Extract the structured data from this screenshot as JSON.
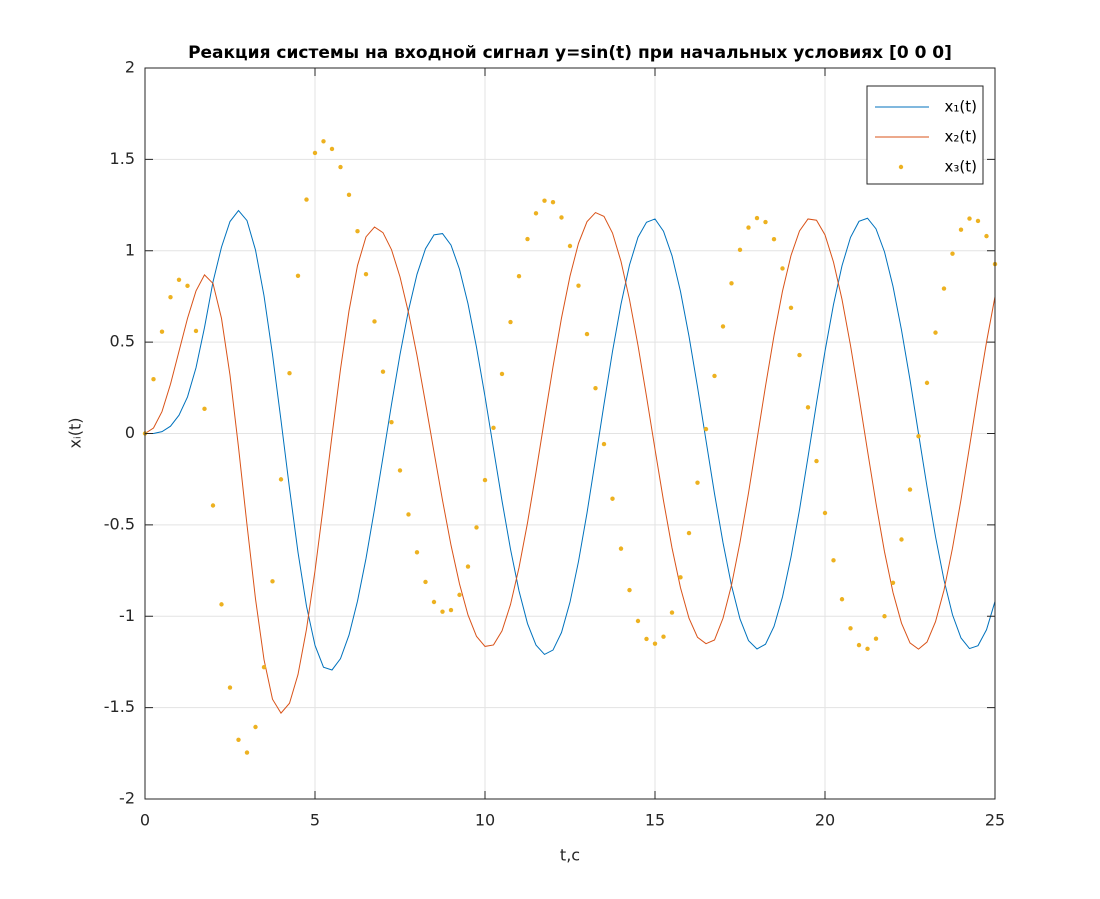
{
  "chart_data": {
    "type": "line",
    "title": "Реакция системы на входной сигнал y=sin(t) при начальных условиях [0 0 0]",
    "x_label": "t,c",
    "y_label": "xᵢ(t)",
    "xlim": [
      0,
      25
    ],
    "xticks": [
      0,
      5,
      10,
      15,
      20,
      25
    ],
    "ylim": [
      -2,
      2
    ],
    "yticks": [
      -2,
      -1.5,
      -1,
      -0.5,
      0,
      0.5,
      1,
      1.5,
      2
    ],
    "grid": true,
    "legend": "top-right",
    "x": [
      0,
      0.25,
      0.5,
      0.75,
      1,
      1.25,
      1.5,
      1.75,
      2,
      2.25,
      2.5,
      2.75,
      3,
      3.25,
      3.5,
      3.75,
      4,
      4.25,
      4.5,
      4.75,
      5,
      5.25,
      5.5,
      5.75,
      6,
      6.25,
      6.5,
      6.75,
      7,
      7.25,
      7.5,
      7.75,
      8,
      8.25,
      8.5,
      8.75,
      9,
      9.25,
      9.5,
      9.75,
      10,
      10.25,
      10.5,
      10.75,
      11,
      11.25,
      11.5,
      11.75,
      12,
      12.25,
      12.5,
      12.75,
      13,
      13.25,
      13.5,
      13.75,
      14,
      14.25,
      14.5,
      14.75,
      15,
      15.25,
      15.5,
      15.75,
      16,
      16.25,
      16.5,
      16.75,
      17,
      17.25,
      17.5,
      17.75,
      18,
      18.25,
      18.5,
      18.75,
      19,
      19.25,
      19.5,
      19.75,
      20,
      20.25,
      20.5,
      20.75,
      21,
      21.25,
      21.5,
      21.75,
      22,
      22.25,
      22.5,
      22.75,
      23,
      23.25,
      23.5,
      23.75,
      24,
      24.25,
      24.5,
      24.75,
      25
    ],
    "series": [
      {
        "name": "x₁(t)",
        "color": "#0072BD",
        "style": "line",
        "values": [
          0,
          0,
          0.01,
          0.04,
          0.1,
          0.2,
          0.36,
          0.58,
          0.83,
          1.02,
          1.16,
          1.22,
          1.165,
          1.004,
          0.754,
          0.432,
          0.072,
          -0.3,
          -0.65,
          -0.945,
          -1.159,
          -1.279,
          -1.294,
          -1.232,
          -1.103,
          -0.917,
          -0.684,
          -0.414,
          -0.129,
          0.159,
          0.432,
          0.674,
          0.871,
          1.011,
          1.087,
          1.094,
          1.031,
          0.899,
          0.71,
          0.472,
          0.203,
          -0.084,
          -0.368,
          -0.633,
          -0.861,
          -1.04,
          -1.158,
          -1.209,
          -1.185,
          -1.089,
          -0.923,
          -0.7,
          -0.435,
          -0.14,
          0.16,
          0.449,
          0.708,
          0.922,
          1.074,
          1.156,
          1.174,
          1.107,
          0.973,
          0.777,
          0.532,
          0.255,
          -0.038,
          -0.329,
          -0.597,
          -0.832,
          -1.015,
          -1.133,
          -1.179,
          -1.153,
          -1.056,
          -0.894,
          -0.676,
          -0.418,
          -0.129,
          0.166,
          0.45,
          0.706,
          0.918,
          1.073,
          1.161,
          1.178,
          1.12,
          0.994,
          0.805,
          0.566,
          0.294,
          0,
          -0.291,
          -0.564,
          -0.802,
          -0.992,
          -1.119,
          -1.177,
          -1.161,
          -1.074,
          -0.919
        ]
      },
      {
        "name": "x₂(t)",
        "color": "#D95319",
        "style": "line",
        "values": [
          0,
          0.03,
          0.12,
          0.27,
          0.45,
          0.63,
          0.78,
          0.868,
          0.821,
          0.63,
          0.319,
          -0.075,
          -0.5,
          -0.905,
          -1.237,
          -1.454,
          -1.53,
          -1.476,
          -1.319,
          -1.071,
          -0.752,
          -0.389,
          -0.011,
          0.352,
          0.671,
          0.919,
          1.076,
          1.13,
          1.099,
          1.006,
          0.857,
          0.661,
          0.427,
          0.167,
          -0.101,
          -0.365,
          -0.611,
          -0.823,
          -0.993,
          -1.11,
          -1.165,
          -1.157,
          -1.08,
          -0.936,
          -0.734,
          -0.489,
          -0.212,
          0.078,
          0.365,
          0.632,
          0.861,
          1.041,
          1.159,
          1.209,
          1.188,
          1.097,
          0.942,
          0.733,
          0.482,
          0.203,
          -0.086,
          -0.368,
          -0.626,
          -0.844,
          -1.011,
          -1.115,
          -1.15,
          -1.13,
          -1.011,
          -0.83,
          -0.595,
          -0.326,
          -0.034,
          0.259,
          0.535,
          0.779,
          0.974,
          1.108,
          1.174,
          1.167,
          1.087,
          0.938,
          0.734,
          0.482,
          0.2,
          -0.094,
          -0.382,
          -0.647,
          -0.87,
          -1.038,
          -1.146,
          -1.18,
          -1.141,
          -1.03,
          -0.857,
          -0.627,
          -0.362,
          -0.073,
          0.221,
          0.5,
          0.749
        ]
      },
      {
        "name": "x₃(t)",
        "color": "#EDB120",
        "style": "markers",
        "values": [
          0,
          0.297,
          0.557,
          0.746,
          0.841,
          0.808,
          0.561,
          0.135,
          -0.394,
          -0.935,
          -1.39,
          -1.676,
          -1.746,
          -1.606,
          -1.279,
          -0.809,
          -0.251,
          0.33,
          0.863,
          1.28,
          1.535,
          1.599,
          1.557,
          1.458,
          1.306,
          1.107,
          0.872,
          0.613,
          0.338,
          0.062,
          -0.202,
          -0.443,
          -0.65,
          -0.812,
          -0.922,
          -0.975,
          -0.966,
          -0.883,
          -0.728,
          -0.514,
          -0.255,
          0.031,
          0.326,
          0.61,
          0.861,
          1.064,
          1.205,
          1.274,
          1.266,
          1.182,
          1.026,
          0.809,
          0.544,
          0.248,
          -0.058,
          -0.357,
          -0.63,
          -0.857,
          -1.026,
          -1.124,
          -1.15,
          -1.112,
          -0.98,
          -0.787,
          -0.545,
          -0.269,
          0.024,
          0.315,
          0.586,
          0.822,
          1.005,
          1.127,
          1.179,
          1.157,
          1.063,
          0.903,
          0.688,
          0.429,
          0.143,
          -0.151,
          -0.435,
          -0.694,
          -0.907,
          -1.066,
          -1.158,
          -1.178,
          -1.123,
          -1,
          -0.817,
          -0.58,
          -0.307,
          -0.015,
          0.277,
          0.552,
          0.793,
          0.984,
          1.115,
          1.176,
          1.163,
          1.08,
          0.927
        ]
      }
    ]
  }
}
